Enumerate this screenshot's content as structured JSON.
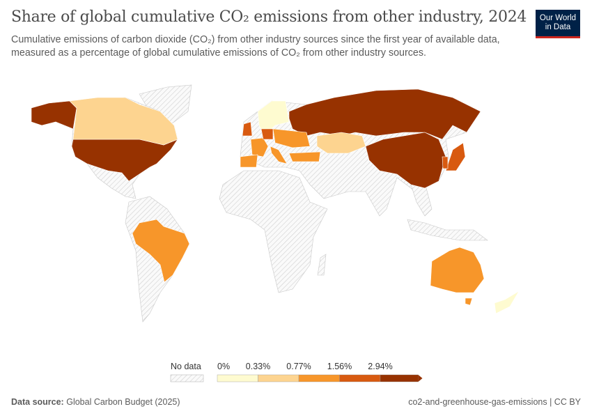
{
  "header": {
    "title": "Share of global cumulative CO₂ emissions from other industry, 2024",
    "subtitle": "Cumulative emissions of carbon dioxide (CO₂) from other industry sources since the first year of available data, measured as a percentage of global cumulative emissions of CO₂ from other industry sources.",
    "logo": "Our World in Data"
  },
  "legend": {
    "no_data_label": "No data",
    "ticks": [
      "0%",
      "0.33%",
      "0.77%",
      "1.56%",
      "2.94%"
    ],
    "bins": [
      {
        "range": "0–0.33%",
        "color": "#fefbd0"
      },
      {
        "range": "0.33–0.77%",
        "color": "#fdd490"
      },
      {
        "range": "0.77–1.56%",
        "color": "#f7962a"
      },
      {
        "range": "1.56–2.94%",
        "color": "#d85a10"
      },
      {
        "range": ">2.94%",
        "color": "#973200"
      }
    ],
    "no_data_color": "#e8e8e8"
  },
  "map_data": {
    "usa": 4,
    "alaska": 4,
    "canada": 1,
    "russia": 4,
    "china": 4,
    "kazakhstan": 1,
    "japan": 3,
    "south_korea": 3,
    "nordics": 0,
    "uk": 3,
    "france": 2,
    "spain": 2,
    "germany": 3,
    "eastern_europe": 2,
    "italy": 2,
    "turkey": 2,
    "brazil": 2,
    "australia": 2,
    "tasmania": 2,
    "new_zealand": 0
  },
  "footer": {
    "source_label": "Data source:",
    "source": "Global Carbon Budget (2025)",
    "slug": "co2-and-greenhouse-gas-emissions | CC BY"
  }
}
